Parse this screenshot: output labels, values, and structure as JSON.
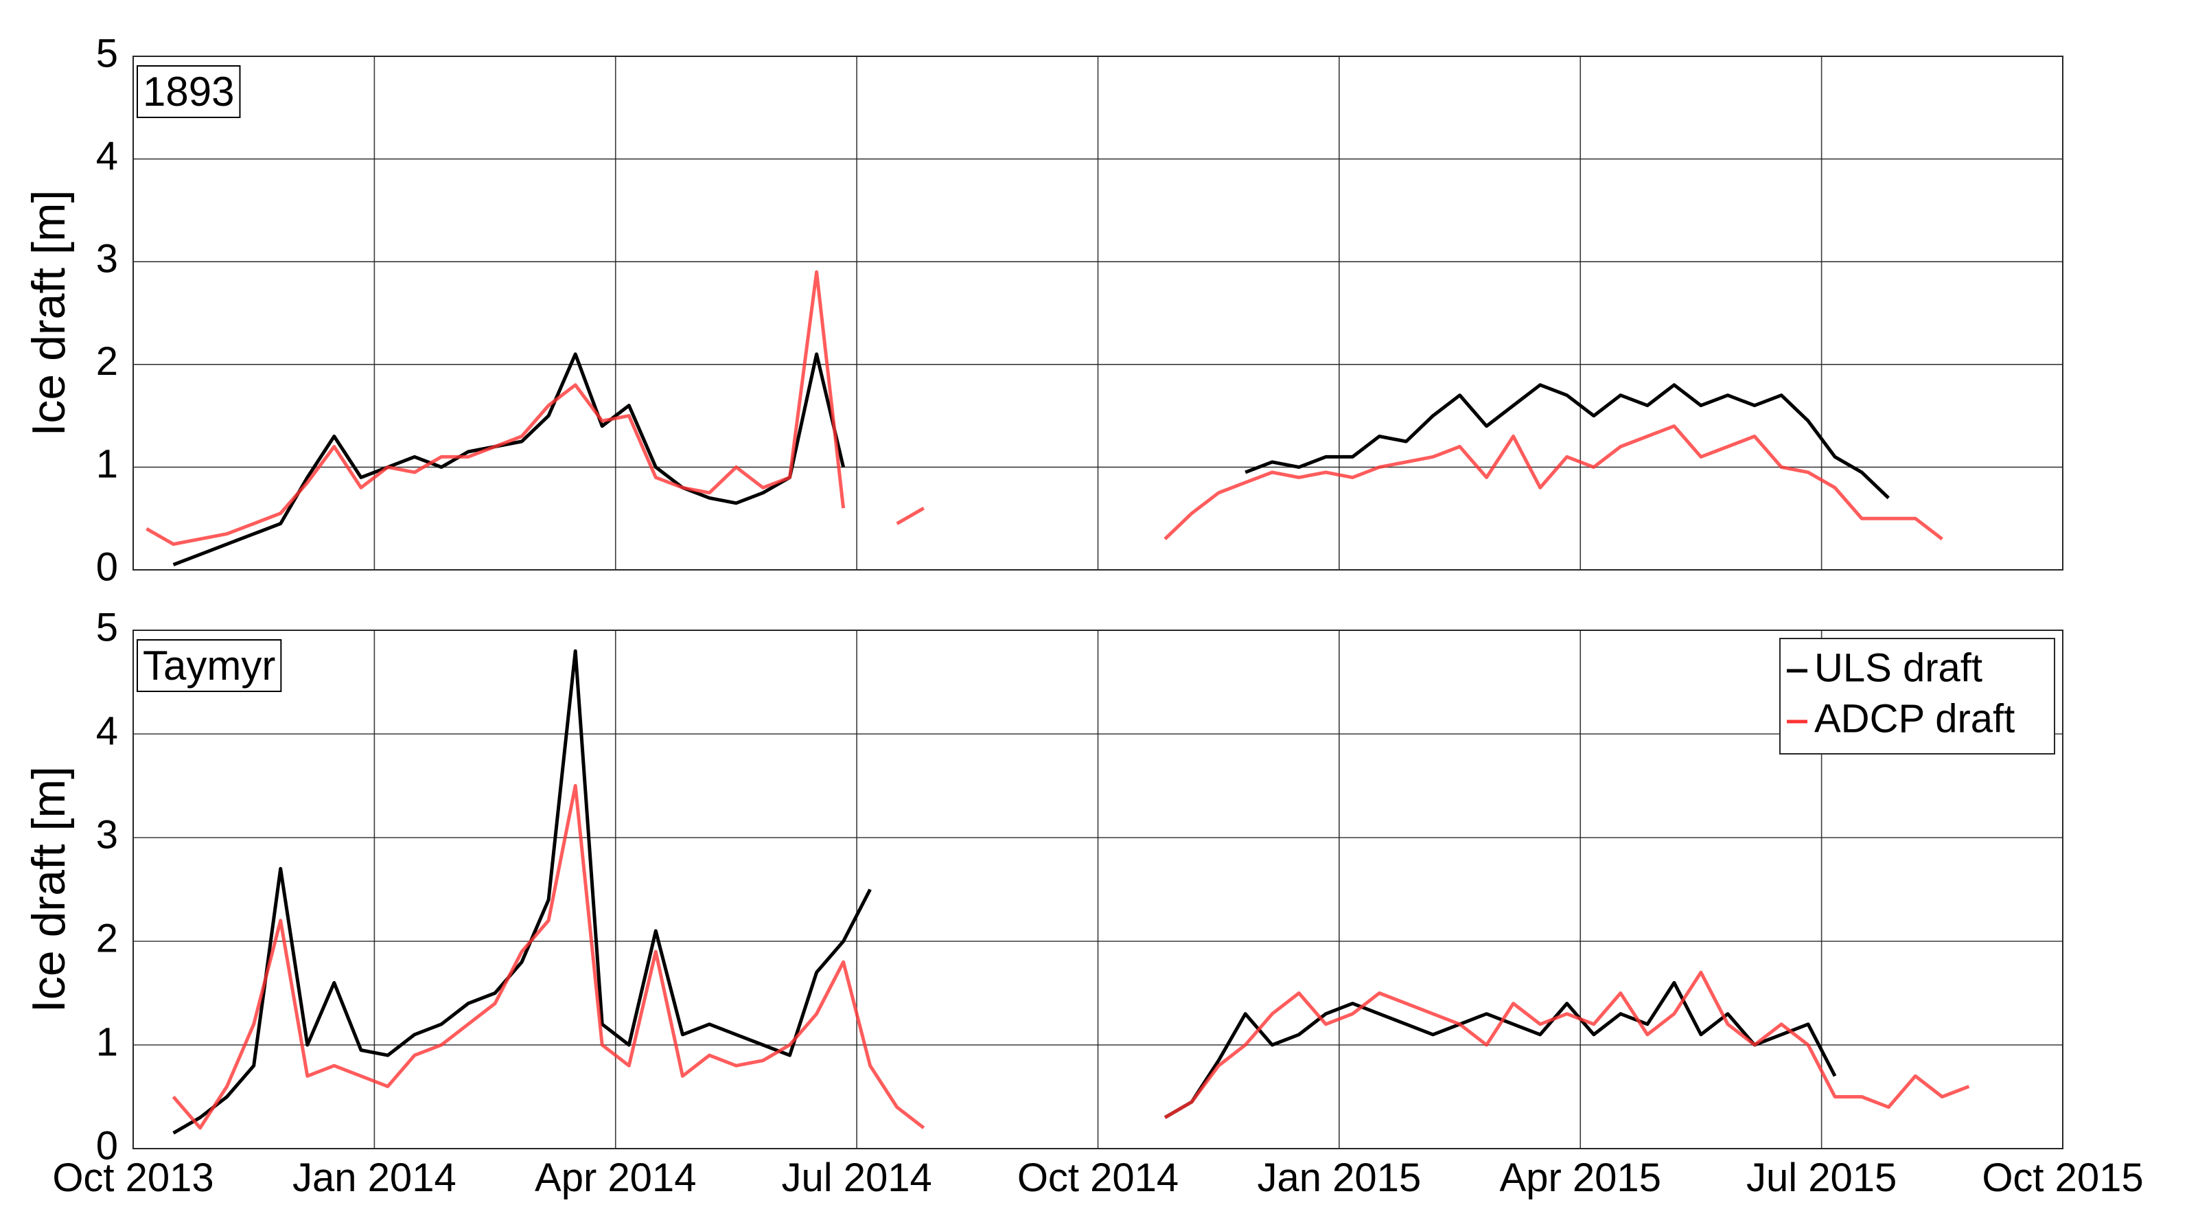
{
  "chart_data": [
    {
      "type": "line",
      "box_label": "1893",
      "y_label": "Ice draft [m]",
      "x": [
        "2013-10",
        "2013-10",
        "2013-10",
        "2013-11",
        "2013-11",
        "2013-11",
        "2013-12",
        "2013-12",
        "2013-12",
        "2014-01",
        "2014-01",
        "2014-01",
        "2014-02",
        "2014-02",
        "2014-02",
        "2014-03",
        "2014-03",
        "2014-03",
        "2014-04",
        "2014-04",
        "2014-04",
        "2014-05",
        "2014-05",
        "2014-05",
        "2014-06",
        "2014-06",
        "2014-06",
        "2014-07",
        "2014-07",
        "2014-07",
        "2014-08",
        "2014-08",
        "2014-08",
        "2014-09",
        "2014-09",
        "2014-09",
        "2014-10",
        "2014-10",
        "2014-10",
        "2014-11",
        "2014-11",
        "2014-11",
        "2014-12",
        "2014-12",
        "2014-12",
        "2015-01",
        "2015-01",
        "2015-01",
        "2015-02",
        "2015-02",
        "2015-02",
        "2015-03",
        "2015-03",
        "2015-03",
        "2015-04",
        "2015-04",
        "2015-04",
        "2015-05",
        "2015-05",
        "2015-05",
        "2015-06",
        "2015-06",
        "2015-06",
        "2015-07",
        "2015-07",
        "2015-07",
        "2015-08",
        "2015-08",
        "2015-08",
        "2015-09",
        "2015-09",
        "2015-09"
      ],
      "series": [
        {
          "name": "ULS draft",
          "color": "#000000",
          "values": [
            null,
            0.05,
            0.15,
            0.25,
            0.35,
            0.45,
            0.9,
            1.3,
            0.9,
            1.0,
            1.1,
            1.0,
            1.15,
            1.2,
            1.25,
            1.5,
            2.1,
            1.4,
            1.6,
            1.0,
            0.8,
            0.7,
            0.65,
            0.75,
            0.9,
            2.1,
            1.0,
            null,
            null,
            null,
            null,
            null,
            null,
            null,
            null,
            null,
            null,
            null,
            null,
            null,
            null,
            0.95,
            1.05,
            1.0,
            1.1,
            1.1,
            1.3,
            1.25,
            1.5,
            1.7,
            1.4,
            1.6,
            1.8,
            1.7,
            1.5,
            1.7,
            1.6,
            1.8,
            1.6,
            1.7,
            1.6,
            1.7,
            1.45,
            1.1,
            0.95,
            0.7,
            null,
            null,
            null,
            null,
            null,
            null
          ]
        },
        {
          "name": "ADCP draft",
          "color": "#ff3333",
          "values": [
            0.4,
            0.25,
            0.3,
            0.35,
            0.45,
            0.55,
            0.85,
            1.2,
            0.8,
            1.0,
            0.95,
            1.1,
            1.1,
            1.2,
            1.3,
            1.6,
            1.8,
            1.45,
            1.5,
            0.9,
            0.8,
            0.75,
            1.0,
            0.8,
            0.9,
            2.9,
            0.6,
            null,
            0.45,
            0.6,
            null,
            null,
            null,
            null,
            null,
            null,
            null,
            null,
            0.3,
            0.55,
            0.75,
            0.85,
            0.95,
            0.9,
            0.95,
            0.9,
            1.0,
            1.05,
            1.1,
            1.2,
            0.9,
            1.3,
            0.8,
            1.1,
            1.0,
            1.2,
            1.3,
            1.4,
            1.1,
            1.2,
            1.3,
            1.0,
            0.95,
            0.8,
            0.5,
            0.5,
            0.5,
            0.3,
            null,
            null,
            null,
            null
          ]
        }
      ],
      "xlim": [
        "2013-10",
        "2015-10"
      ],
      "ylim": [
        0,
        5
      ],
      "yticks": [
        0,
        1,
        2,
        3,
        4,
        5
      ],
      "grid": true
    },
    {
      "type": "line",
      "box_label": "Taymyr",
      "y_label": "Ice draft [m]",
      "x": [
        "2013-10",
        "2013-10",
        "2013-10",
        "2013-11",
        "2013-11",
        "2013-11",
        "2013-12",
        "2013-12",
        "2013-12",
        "2014-01",
        "2014-01",
        "2014-01",
        "2014-02",
        "2014-02",
        "2014-02",
        "2014-03",
        "2014-03",
        "2014-03",
        "2014-04",
        "2014-04",
        "2014-04",
        "2014-05",
        "2014-05",
        "2014-05",
        "2014-06",
        "2014-06",
        "2014-06",
        "2014-07",
        "2014-07",
        "2014-07",
        "2014-08",
        "2014-08",
        "2014-08",
        "2014-09",
        "2014-09",
        "2014-09",
        "2014-10",
        "2014-10",
        "2014-10",
        "2014-11",
        "2014-11",
        "2014-11",
        "2014-12",
        "2014-12",
        "2014-12",
        "2015-01",
        "2015-01",
        "2015-01",
        "2015-02",
        "2015-02",
        "2015-02",
        "2015-03",
        "2015-03",
        "2015-03",
        "2015-04",
        "2015-04",
        "2015-04",
        "2015-05",
        "2015-05",
        "2015-05",
        "2015-06",
        "2015-06",
        "2015-06",
        "2015-07",
        "2015-07",
        "2015-07",
        "2015-08",
        "2015-08",
        "2015-08",
        "2015-09",
        "2015-09",
        "2015-09"
      ],
      "series": [
        {
          "name": "ULS draft",
          "color": "#000000",
          "values": [
            null,
            0.15,
            0.3,
            0.5,
            0.8,
            2.7,
            1.0,
            1.6,
            0.95,
            0.9,
            1.1,
            1.2,
            1.4,
            1.5,
            1.8,
            2.4,
            4.8,
            1.2,
            1.0,
            2.1,
            1.1,
            1.2,
            1.1,
            1.0,
            0.9,
            1.7,
            2.0,
            2.5,
            null,
            null,
            null,
            null,
            null,
            null,
            null,
            null,
            null,
            null,
            0.3,
            0.45,
            0.85,
            1.3,
            1.0,
            1.1,
            1.3,
            1.4,
            1.3,
            1.2,
            1.1,
            1.2,
            1.3,
            1.2,
            1.1,
            1.4,
            1.1,
            1.3,
            1.2,
            1.6,
            1.1,
            1.3,
            1.0,
            1.1,
            1.2,
            0.7,
            null,
            null,
            null,
            null,
            null,
            null,
            null,
            null
          ]
        },
        {
          "name": "ADCP draft",
          "color": "#ff3333",
          "values": [
            null,
            0.5,
            0.2,
            0.6,
            1.2,
            2.2,
            0.7,
            0.8,
            0.7,
            0.6,
            0.9,
            1.0,
            1.2,
            1.4,
            1.9,
            2.2,
            3.5,
            1.0,
            0.8,
            1.9,
            0.7,
            0.9,
            0.8,
            0.85,
            1.0,
            1.3,
            1.8,
            0.8,
            0.4,
            0.2,
            null,
            null,
            null,
            null,
            null,
            null,
            null,
            null,
            0.3,
            0.45,
            0.8,
            1.0,
            1.3,
            1.5,
            1.2,
            1.3,
            1.5,
            1.4,
            1.3,
            1.2,
            1.0,
            1.4,
            1.2,
            1.3,
            1.2,
            1.5,
            1.1,
            1.3,
            1.7,
            1.2,
            1.0,
            1.2,
            1.0,
            0.5,
            0.5,
            0.4,
            0.7,
            0.5,
            0.6,
            null,
            null,
            null
          ]
        }
      ],
      "xlim": [
        "2013-10",
        "2015-10"
      ],
      "xticks": [
        {
          "value": "2013-10",
          "label": "Oct 2013"
        },
        {
          "value": "2014-01",
          "label": "Jan 2014"
        },
        {
          "value": "2014-04",
          "label": "Apr 2014"
        },
        {
          "value": "2014-07",
          "label": "Jul 2014"
        },
        {
          "value": "2014-10",
          "label": "Oct 2014"
        },
        {
          "value": "2015-01",
          "label": "Jan 2015"
        },
        {
          "value": "2015-04",
          "label": "Apr 2015"
        },
        {
          "value": "2015-07",
          "label": "Jul 2015"
        },
        {
          "value": "2015-10",
          "label": "Oct 2015"
        }
      ],
      "ylim": [
        0,
        5
      ],
      "yticks": [
        0,
        1,
        2,
        3,
        4,
        5
      ],
      "grid": true,
      "legend": "upper right"
    }
  ]
}
